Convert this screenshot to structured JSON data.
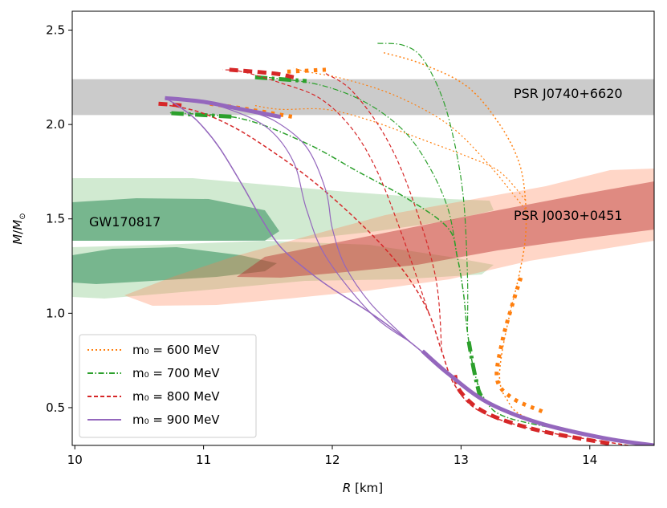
{
  "chart_data": {
    "type": "line",
    "xlabel": "R [km]",
    "ylabel": "M/M⊙",
    "xlim": [
      9.98,
      14.5
    ],
    "ylim": [
      0.3,
      2.6
    ],
    "x_ticks": [
      "10",
      "11",
      "12",
      "13",
      "14"
    ],
    "y_ticks": [
      "0.5",
      "1.0",
      "1.5",
      "2.0",
      "2.5"
    ],
    "x_tick_values": [
      10,
      11,
      12,
      13,
      14
    ],
    "y_tick_values": [
      0.5,
      1.0,
      1.5,
      2.0,
      2.5
    ],
    "annotations": {
      "gw170817": "GW170817",
      "psr_j0030": "PSR J0030+0451",
      "psr_j0740": "PSR J0740+6620"
    },
    "band": {
      "name": "PSR J0740+6620",
      "y_range": [
        2.05,
        2.24
      ],
      "color": "#cccccc"
    },
    "legend": [
      {
        "label": "m₀ = 600 MeV",
        "style": "dotted",
        "color": "#ff7f0e"
      },
      {
        "label": "m₀ = 700 MeV",
        "style": "dashdot",
        "color": "#2ca02c"
      },
      {
        "label": "m₀ = 800 MeV",
        "style": "dashed",
        "color": "#d62728"
      },
      {
        "label": "m₀ = 900 MeV",
        "style": "solid",
        "color": "#9467bd"
      }
    ],
    "series": [
      {
        "name": "m0 = 600 MeV",
        "color": "#ff7f0e",
        "dash": "2,3",
        "curves": [
          {
            "width": 1.5,
            "points": [
              [
                14.5,
                0.3
              ],
              [
                14.0,
                0.36
              ],
              [
                13.5,
                0.45
              ],
              [
                13.35,
                0.55
              ],
              [
                13.3,
                0.65
              ],
              [
                13.32,
                0.8
              ],
              [
                13.38,
                1.0
              ],
              [
                13.45,
                1.2
              ],
              [
                13.5,
                1.4
              ],
              [
                13.5,
                1.6
              ],
              [
                13.45,
                1.8
              ],
              [
                13.3,
                2.0
              ],
              [
                13.05,
                2.2
              ],
              [
                12.7,
                2.32
              ],
              [
                12.4,
                2.38
              ]
            ]
          },
          {
            "width": 1.2,
            "points": [
              [
                13.5,
                1.6
              ],
              [
                13.3,
                1.75
              ],
              [
                13.05,
                1.83
              ],
              [
                12.7,
                1.92
              ],
              [
                12.3,
                2.02
              ],
              [
                11.95,
                2.08
              ],
              [
                11.6,
                2.08
              ],
              [
                11.4,
                2.1
              ]
            ]
          },
          {
            "width": 1.2,
            "points": [
              [
                13.5,
                1.55
              ],
              [
                13.2,
                1.8
              ],
              [
                12.9,
                2.0
              ],
              [
                12.5,
                2.15
              ],
              [
                12.1,
                2.24
              ],
              [
                11.8,
                2.28
              ],
              [
                11.7,
                2.3
              ]
            ]
          }
        ],
        "thick_segments": [
          {
            "points": [
              [
                13.63,
                0.48
              ],
              [
                13.4,
                0.55
              ],
              [
                13.28,
                0.65
              ],
              [
                13.32,
                0.85
              ],
              [
                13.4,
                1.05
              ],
              [
                13.47,
                1.2
              ]
            ]
          },
          {
            "points": [
              [
                11.05,
                2.11
              ],
              [
                11.35,
                2.08
              ],
              [
                11.7,
                2.04
              ]
            ]
          },
          {
            "points": [
              [
                11.65,
                2.28
              ],
              [
                11.95,
                2.29
              ]
            ]
          }
        ]
      },
      {
        "name": "m0 = 700 MeV",
        "color": "#2ca02c",
        "dash": "7,2.5,1.5,2.5",
        "curves": [
          {
            "width": 1.5,
            "points": [
              [
                14.5,
                0.3
              ],
              [
                13.9,
                0.37
              ],
              [
                13.35,
                0.45
              ],
              [
                13.18,
                0.55
              ],
              [
                13.1,
                0.7
              ],
              [
                13.05,
                0.9
              ],
              [
                13.02,
                1.1
              ],
              [
                12.97,
                1.3
              ],
              [
                12.9,
                1.45
              ],
              [
                12.6,
                1.6
              ],
              [
                12.2,
                1.75
              ],
              [
                11.8,
                1.9
              ],
              [
                11.3,
                2.03
              ],
              [
                10.8,
                2.06
              ],
              [
                10.75,
                2.06
              ]
            ]
          },
          {
            "width": 1.2,
            "points": [
              [
                12.97,
                1.3
              ],
              [
                12.9,
                1.55
              ],
              [
                12.75,
                1.78
              ],
              [
                12.55,
                1.97
              ],
              [
                12.25,
                2.12
              ],
              [
                11.9,
                2.21
              ],
              [
                11.5,
                2.25
              ],
              [
                11.4,
                2.26
              ]
            ]
          },
          {
            "width": 1.2,
            "points": [
              [
                13.05,
                0.9
              ],
              [
                13.05,
                1.2
              ],
              [
                13.02,
                1.6
              ],
              [
                12.95,
                1.9
              ],
              [
                12.85,
                2.15
              ],
              [
                12.7,
                2.35
              ],
              [
                12.55,
                2.42
              ],
              [
                12.35,
                2.43
              ]
            ]
          }
        ],
        "thick_segments": [
          {
            "points": [
              [
                13.15,
                0.55
              ],
              [
                13.1,
                0.7
              ],
              [
                13.06,
                0.85
              ]
            ]
          },
          {
            "points": [
              [
                10.75,
                2.06
              ],
              [
                11.0,
                2.05
              ],
              [
                11.25,
                2.04
              ]
            ]
          },
          {
            "points": [
              [
                11.4,
                2.25
              ],
              [
                11.8,
                2.23
              ]
            ]
          }
        ]
      },
      {
        "name": "m0 = 800 MeV",
        "color": "#d62728",
        "dash": "5,3",
        "curves": [
          {
            "width": 1.5,
            "points": [
              [
                14.3,
                0.3
              ],
              [
                13.6,
                0.38
              ],
              [
                13.15,
                0.48
              ],
              [
                12.95,
                0.62
              ],
              [
                12.85,
                0.8
              ],
              [
                12.75,
                1.0
              ],
              [
                12.6,
                1.18
              ],
              [
                12.4,
                1.35
              ],
              [
                12.15,
                1.52
              ],
              [
                11.85,
                1.7
              ],
              [
                11.55,
                1.85
              ],
              [
                11.25,
                1.98
              ],
              [
                10.95,
                2.07
              ],
              [
                10.65,
                2.11
              ]
            ]
          },
          {
            "width": 1.2,
            "points": [
              [
                12.75,
                1.0
              ],
              [
                12.55,
                1.4
              ],
              [
                12.35,
                1.75
              ],
              [
                12.15,
                1.98
              ],
              [
                11.9,
                2.14
              ],
              [
                11.6,
                2.22
              ],
              [
                11.3,
                2.28
              ],
              [
                11.15,
                2.29
              ]
            ]
          },
          {
            "width": 1.2,
            "points": [
              [
                12.85,
                0.8
              ],
              [
                12.8,
                1.2
              ],
              [
                12.6,
                1.65
              ],
              [
                12.4,
                1.95
              ],
              [
                12.15,
                2.18
              ],
              [
                11.95,
                2.27
              ]
            ]
          }
        ],
        "thick_segments": [
          {
            "points": [
              [
                14.15,
                0.31
              ],
              [
                13.6,
                0.38
              ],
              [
                13.2,
                0.47
              ],
              [
                13.0,
                0.58
              ],
              [
                12.95,
                0.68
              ]
            ]
          },
          {
            "points": [
              [
                10.65,
                2.11
              ],
              [
                10.85,
                2.1
              ]
            ]
          },
          {
            "points": [
              [
                11.2,
                2.29
              ],
              [
                11.55,
                2.27
              ],
              [
                11.7,
                2.25
              ]
            ]
          }
        ]
      },
      {
        "name": "m0 = 900 MeV",
        "color": "#9467bd",
        "dash": "",
        "curves": [
          {
            "width": 1.5,
            "points": [
              [
                14.5,
                0.3
              ],
              [
                14.2,
                0.33
              ],
              [
                13.9,
                0.37
              ],
              [
                13.6,
                0.42
              ],
              [
                13.3,
                0.5
              ],
              [
                13.1,
                0.58
              ],
              [
                12.9,
                0.68
              ],
              [
                12.6,
                0.85
              ],
              [
                12.3,
                1.0
              ],
              [
                12.0,
                1.13
              ],
              [
                11.8,
                1.23
              ],
              [
                11.6,
                1.35
              ],
              [
                11.45,
                1.5
              ],
              [
                11.3,
                1.68
              ],
              [
                11.12,
                1.88
              ],
              [
                10.95,
                2.02
              ],
              [
                10.8,
                2.1
              ],
              [
                10.7,
                2.14
              ]
            ]
          },
          {
            "width": 1.2,
            "points": [
              [
                12.6,
                0.85
              ],
              [
                12.3,
                1.0
              ],
              [
                11.95,
                1.3
              ],
              [
                11.8,
                1.55
              ],
              [
                11.7,
                1.8
              ],
              [
                11.5,
                1.98
              ],
              [
                11.2,
                2.08
              ],
              [
                10.9,
                2.13
              ],
              [
                10.7,
                2.14
              ]
            ]
          },
          {
            "width": 1.2,
            "points": [
              [
                12.6,
                0.85
              ],
              [
                12.3,
                1.05
              ],
              [
                12.1,
                1.25
              ],
              [
                12.0,
                1.45
              ],
              [
                11.95,
                1.65
              ],
              [
                11.8,
                1.88
              ],
              [
                11.55,
                2.02
              ],
              [
                11.3,
                2.08
              ]
            ]
          }
        ],
        "thick_segments": [
          {
            "points": [
              [
                14.5,
                0.3
              ],
              [
                14.1,
                0.34
              ],
              [
                13.6,
                0.42
              ],
              [
                13.2,
                0.53
              ],
              [
                12.9,
                0.68
              ],
              [
                12.7,
                0.8
              ]
            ]
          },
          {
            "points": [
              [
                10.7,
                2.14
              ],
              [
                11.0,
                2.12
              ],
              [
                11.3,
                2.08
              ],
              [
                11.6,
                2.04
              ]
            ]
          }
        ]
      }
    ]
  }
}
